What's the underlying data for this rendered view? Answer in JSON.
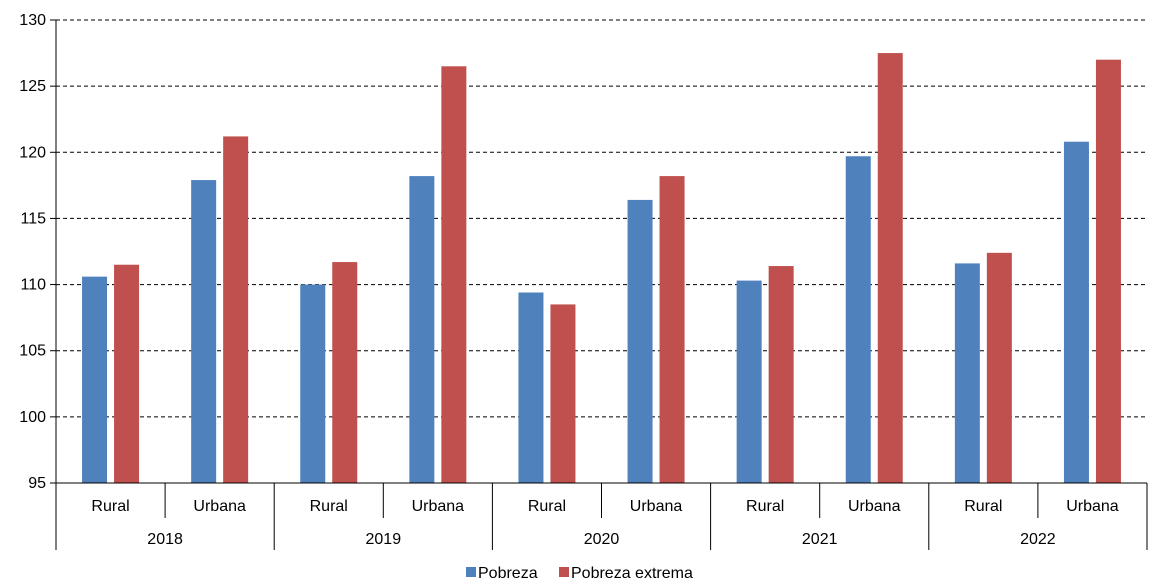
{
  "chart_data": {
    "type": "bar",
    "title": "",
    "xlabel": "",
    "ylabel": "",
    "ylim": [
      95,
      130
    ],
    "yticks": [
      95,
      100,
      105,
      110,
      115,
      120,
      125,
      130
    ],
    "grid": true,
    "legend_position": "bottom",
    "groups": [
      {
        "year": "2018",
        "categories": [
          "Rural",
          "Urbana"
        ]
      },
      {
        "year": "2019",
        "categories": [
          "Rural",
          "Urbana"
        ]
      },
      {
        "year": "2020",
        "categories": [
          "Rural",
          "Urbana"
        ]
      },
      {
        "year": "2021",
        "categories": [
          "Rural",
          "Urbana"
        ]
      },
      {
        "year": "2022",
        "categories": [
          "Rural",
          "Urbana"
        ]
      }
    ],
    "series": [
      {
        "name": "Pobreza",
        "color": "#4f81bd",
        "values": [
          110.6,
          117.9,
          110.0,
          118.2,
          109.4,
          116.4,
          110.3,
          119.7,
          111.6,
          120.8
        ]
      },
      {
        "name": "Pobreza extrema",
        "color": "#c0504d",
        "values": [
          111.5,
          121.2,
          111.7,
          126.5,
          108.5,
          118.2,
          111.4,
          127.5,
          112.4,
          127.0
        ]
      }
    ]
  }
}
